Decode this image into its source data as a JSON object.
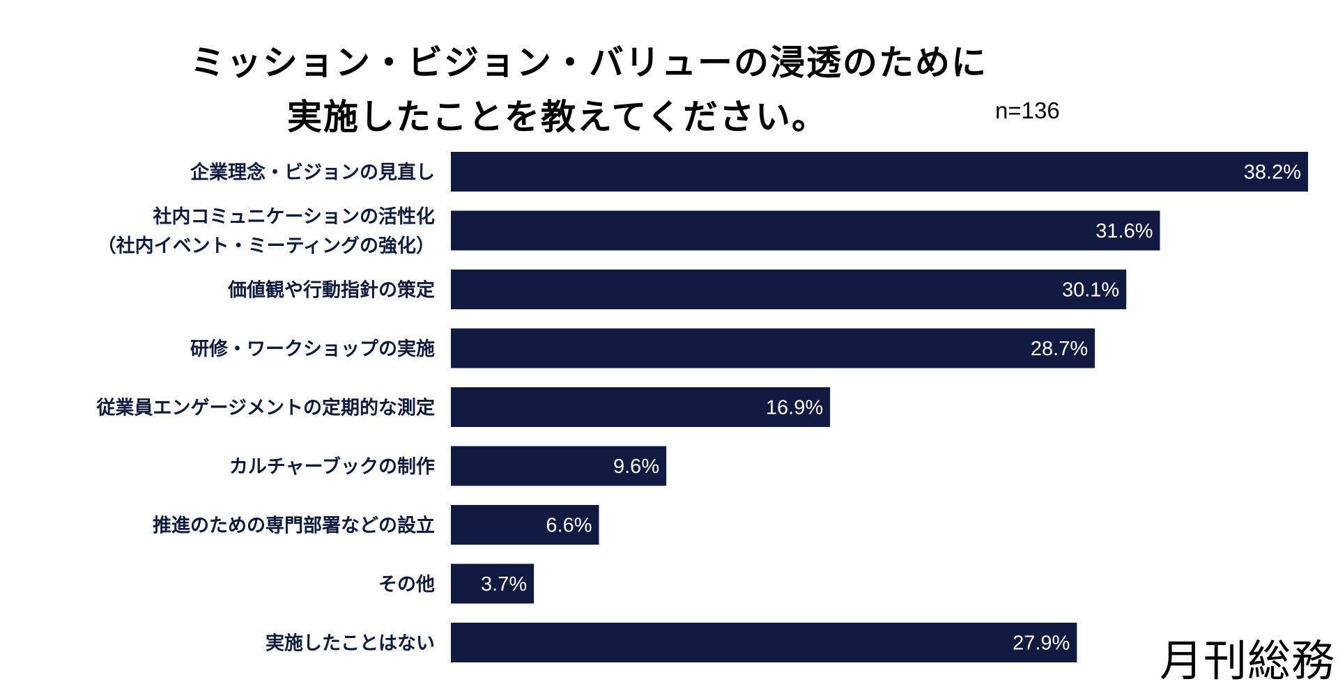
{
  "chart_data": {
    "type": "bar",
    "orientation": "horizontal",
    "title_lines": [
      "ミッション・ビジョン・バリューの浸透のために",
      "実施したことを教えてください。"
    ],
    "sample_size": "n=136",
    "categories": [
      [
        "企業理念・ビジョンの見直し"
      ],
      [
        "社内コミュニケーションの活性化",
        "（社内イベント・ミーティングの強化）"
      ],
      [
        "価値観や行動指針の策定"
      ],
      [
        "研修・ワークショップの実施"
      ],
      [
        "従業員エンゲージメントの定期的な測定"
      ],
      [
        "カルチャーブックの制作"
      ],
      [
        "推進のための専門部署などの設立"
      ],
      [
        "その他"
      ],
      [
        "実施したことはない"
      ]
    ],
    "values": [
      38.2,
      31.6,
      30.1,
      28.7,
      16.9,
      9.6,
      6.6,
      3.7,
      27.9
    ],
    "value_labels": [
      "38.2%",
      "31.6%",
      "30.1%",
      "28.7%",
      "16.9%",
      "9.6%",
      "6.6%",
      "3.7%",
      "27.9%"
    ],
    "xlim": [
      0,
      38.2
    ],
    "bar_color": "#111a40",
    "label_color": "#0f1a3f"
  },
  "brand": {
    "logo_text": "月刊総務"
  }
}
